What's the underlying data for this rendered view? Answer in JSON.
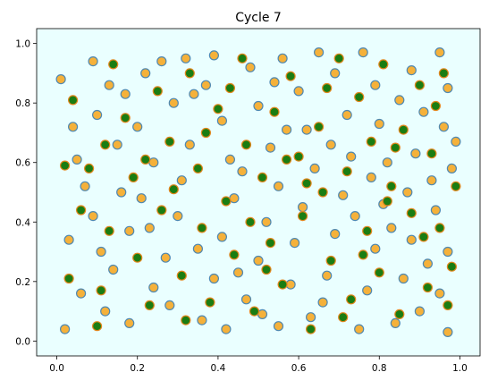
{
  "chart_data": {
    "type": "scatter",
    "title": "Cycle 7",
    "xlabel": "",
    "ylabel": "",
    "xlim": [
      -0.05,
      1.05
    ],
    "ylim": [
      -0.05,
      1.05
    ],
    "xticks": [
      "0.0",
      "0.2",
      "0.4",
      "0.6",
      "0.8",
      "1.0"
    ],
    "yticks": [
      "0.0",
      "0.2",
      "0.4",
      "0.6",
      "0.8",
      "1.0"
    ],
    "grid": false,
    "legend": "none",
    "background_color": "#eaffff",
    "series": [
      {
        "marker_face": "#f5b13a",
        "marker_edge": "#4f88b0",
        "points": [
          [
            0.02,
            0.04
          ],
          [
            0.06,
            0.16
          ],
          [
            0.03,
            0.34
          ],
          [
            0.09,
            0.42
          ],
          [
            0.05,
            0.61
          ],
          [
            0.1,
            0.76
          ],
          [
            0.09,
            0.94
          ],
          [
            0.13,
            0.86
          ],
          [
            0.17,
            0.83
          ],
          [
            0.2,
            0.72
          ],
          [
            0.24,
            0.6
          ],
          [
            0.21,
            0.48
          ],
          [
            0.18,
            0.37
          ],
          [
            0.14,
            0.24
          ],
          [
            0.12,
            0.1
          ],
          [
            0.18,
            0.06
          ],
          [
            0.24,
            0.18
          ],
          [
            0.27,
            0.28
          ],
          [
            0.3,
            0.42
          ],
          [
            0.31,
            0.54
          ],
          [
            0.33,
            0.66
          ],
          [
            0.29,
            0.8
          ],
          [
            0.26,
            0.94
          ],
          [
            0.32,
            0.95
          ],
          [
            0.37,
            0.86
          ],
          [
            0.41,
            0.74
          ],
          [
            0.43,
            0.61
          ],
          [
            0.44,
            0.48
          ],
          [
            0.41,
            0.35
          ],
          [
            0.39,
            0.21
          ],
          [
            0.36,
            0.07
          ],
          [
            0.42,
            0.04
          ],
          [
            0.47,
            0.14
          ],
          [
            0.5,
            0.27
          ],
          [
            0.52,
            0.4
          ],
          [
            0.55,
            0.52
          ],
          [
            0.53,
            0.65
          ],
          [
            0.5,
            0.79
          ],
          [
            0.48,
            0.92
          ],
          [
            0.56,
            0.95
          ],
          [
            0.6,
            0.84
          ],
          [
            0.62,
            0.71
          ],
          [
            0.64,
            0.58
          ],
          [
            0.61,
            0.45
          ],
          [
            0.59,
            0.33
          ],
          [
            0.58,
            0.19
          ],
          [
            0.55,
            0.05
          ],
          [
            0.63,
            0.08
          ],
          [
            0.67,
            0.22
          ],
          [
            0.69,
            0.36
          ],
          [
            0.71,
            0.49
          ],
          [
            0.73,
            0.62
          ],
          [
            0.72,
            0.76
          ],
          [
            0.69,
            0.9
          ],
          [
            0.76,
            0.97
          ],
          [
            0.79,
            0.86
          ],
          [
            0.8,
            0.73
          ],
          [
            0.82,
            0.6
          ],
          [
            0.81,
            0.46
          ],
          [
            0.79,
            0.31
          ],
          [
            0.77,
            0.17
          ],
          [
            0.75,
            0.04
          ],
          [
            0.84,
            0.06
          ],
          [
            0.86,
            0.21
          ],
          [
            0.88,
            0.34
          ],
          [
            0.87,
            0.5
          ],
          [
            0.89,
            0.63
          ],
          [
            0.91,
            0.77
          ],
          [
            0.88,
            0.91
          ],
          [
            0.95,
            0.97
          ],
          [
            0.97,
            0.85
          ],
          [
            0.96,
            0.72
          ],
          [
            0.98,
            0.58
          ],
          [
            0.94,
            0.44
          ],
          [
            0.97,
            0.3
          ],
          [
            0.95,
            0.16
          ],
          [
            0.97,
            0.03
          ],
          [
            0.07,
            0.52
          ],
          [
            0.15,
            0.66
          ],
          [
            0.22,
            0.9
          ],
          [
            0.35,
            0.31
          ],
          [
            0.46,
            0.57
          ],
          [
            0.57,
            0.71
          ],
          [
            0.66,
            0.13
          ],
          [
            0.74,
            0.42
          ],
          [
            0.85,
            0.81
          ],
          [
            0.92,
            0.26
          ],
          [
            0.01,
            0.88
          ],
          [
            0.11,
            0.3
          ],
          [
            0.28,
            0.12
          ],
          [
            0.39,
            0.96
          ],
          [
            0.51,
            0.09
          ],
          [
            0.65,
            0.97
          ],
          [
            0.78,
            0.55
          ],
          [
            0.9,
            0.1
          ],
          [
            0.99,
            0.67
          ],
          [
            0.04,
            0.72
          ],
          [
            0.16,
            0.5
          ],
          [
            0.23,
            0.38
          ],
          [
            0.34,
            0.83
          ],
          [
            0.45,
            0.23
          ],
          [
            0.54,
            0.87
          ],
          [
            0.68,
            0.66
          ],
          [
            0.83,
            0.38
          ],
          [
            0.93,
            0.54
          ]
        ]
      },
      {
        "marker_face": "#1a7d12",
        "marker_edge": "#e2861c",
        "points": [
          [
            0.04,
            0.81
          ],
          [
            0.08,
            0.58
          ],
          [
            0.03,
            0.21
          ],
          [
            0.1,
            0.05
          ],
          [
            0.12,
            0.66
          ],
          [
            0.14,
            0.93
          ],
          [
            0.19,
            0.55
          ],
          [
            0.2,
            0.28
          ],
          [
            0.23,
            0.12
          ],
          [
            0.25,
            0.84
          ],
          [
            0.26,
            0.44
          ],
          [
            0.28,
            0.67
          ],
          [
            0.31,
            0.22
          ],
          [
            0.33,
            0.9
          ],
          [
            0.35,
            0.58
          ],
          [
            0.36,
            0.38
          ],
          [
            0.38,
            0.13
          ],
          [
            0.4,
            0.78
          ],
          [
            0.42,
            0.47
          ],
          [
            0.44,
            0.29
          ],
          [
            0.46,
            0.95
          ],
          [
            0.47,
            0.66
          ],
          [
            0.49,
            0.1
          ],
          [
            0.51,
            0.55
          ],
          [
            0.53,
            0.33
          ],
          [
            0.54,
            0.77
          ],
          [
            0.56,
            0.19
          ],
          [
            0.58,
            0.89
          ],
          [
            0.6,
            0.62
          ],
          [
            0.61,
            0.42
          ],
          [
            0.63,
            0.04
          ],
          [
            0.65,
            0.72
          ],
          [
            0.66,
            0.5
          ],
          [
            0.68,
            0.27
          ],
          [
            0.7,
            0.95
          ],
          [
            0.72,
            0.57
          ],
          [
            0.73,
            0.14
          ],
          [
            0.75,
            0.82
          ],
          [
            0.77,
            0.37
          ],
          [
            0.78,
            0.67
          ],
          [
            0.8,
            0.23
          ],
          [
            0.81,
            0.93
          ],
          [
            0.83,
            0.52
          ],
          [
            0.85,
            0.09
          ],
          [
            0.86,
            0.71
          ],
          [
            0.88,
            0.43
          ],
          [
            0.9,
            0.86
          ],
          [
            0.92,
            0.18
          ],
          [
            0.93,
            0.63
          ],
          [
            0.95,
            0.38
          ],
          [
            0.96,
            0.9
          ],
          [
            0.98,
            0.25
          ],
          [
            0.99,
            0.52
          ],
          [
            0.06,
            0.44
          ],
          [
            0.11,
            0.17
          ],
          [
            0.17,
            0.75
          ],
          [
            0.29,
            0.51
          ],
          [
            0.37,
            0.7
          ],
          [
            0.48,
            0.4
          ],
          [
            0.57,
            0.61
          ],
          [
            0.67,
            0.85
          ],
          [
            0.76,
            0.29
          ],
          [
            0.84,
            0.65
          ],
          [
            0.94,
            0.79
          ],
          [
            0.02,
            0.59
          ],
          [
            0.13,
            0.37
          ],
          [
            0.22,
            0.61
          ],
          [
            0.32,
            0.07
          ],
          [
            0.43,
            0.85
          ],
          [
            0.52,
            0.24
          ],
          [
            0.62,
            0.53
          ],
          [
            0.71,
            0.08
          ],
          [
            0.82,
            0.47
          ],
          [
            0.91,
            0.35
          ],
          [
            0.97,
            0.12
          ]
        ]
      }
    ]
  }
}
